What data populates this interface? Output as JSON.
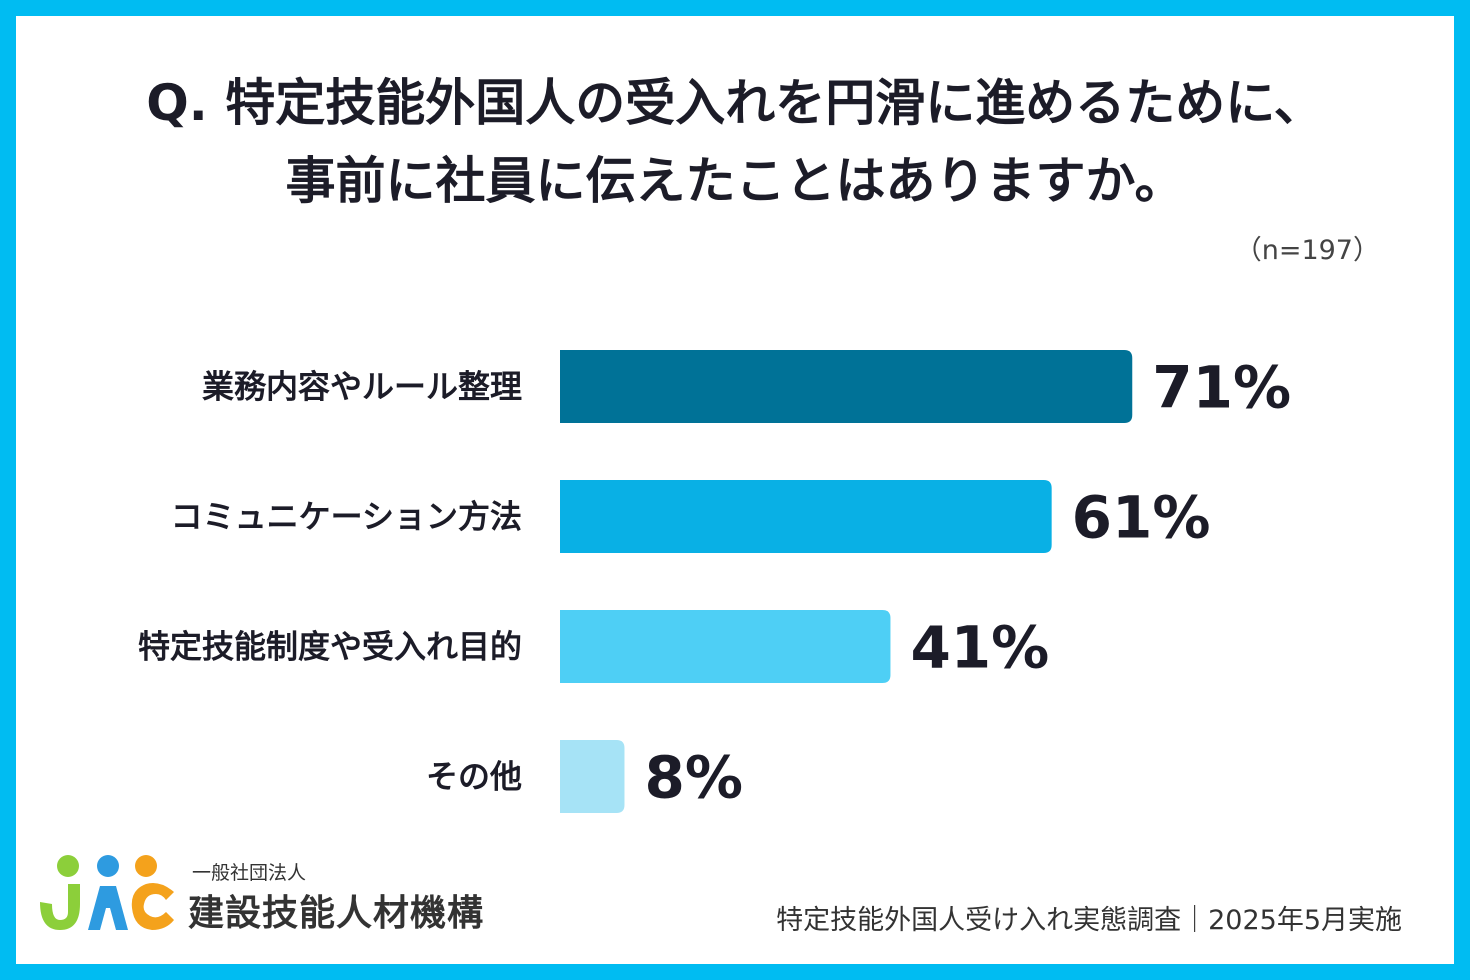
{
  "title": {
    "line1": "Q. 特定技能外国人の受入れを円滑に進めるために、",
    "line2": "事前に社員に伝えたことはありますか。"
  },
  "sample_size": "（n=197）",
  "chart_data": {
    "type": "bar",
    "orientation": "horizontal",
    "categories": [
      "業務内容やルール整理",
      "コミュニケーション方法",
      "特定技能制度や受入れ目的",
      "その他"
    ],
    "values": [
      71,
      61,
      41,
      8
    ],
    "value_labels": [
      "71%",
      "61%",
      "41%",
      "8%"
    ],
    "unit": "%",
    "bar_colors": [
      "#007297",
      "#09b0e5",
      "#4ecff5",
      "#a6e3f6"
    ],
    "xlim": [
      0,
      100
    ],
    "grid": false,
    "legend": "none"
  },
  "org": {
    "small": "一般社団法人",
    "main": "建設技能人材機構",
    "logo_colors": [
      "#8ccf3a",
      "#2e9be0",
      "#f4a21c"
    ]
  },
  "footer": {
    "note": "特定技能外国人受け入れ実態調査｜2025年5月実施"
  },
  "colors": {
    "frame": "#00bcf2",
    "background": "#ffffff",
    "text": "#1c1c28"
  }
}
